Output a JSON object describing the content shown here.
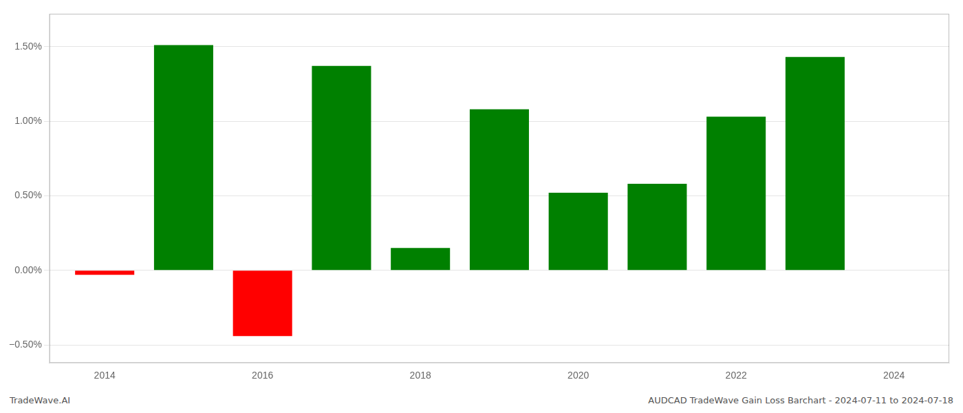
{
  "chart_data": {
    "type": "bar",
    "x": [
      2014,
      2015,
      2016,
      2017,
      2018,
      2019,
      2020,
      2021,
      2022,
      2023
    ],
    "values": [
      -0.03,
      1.51,
      -0.44,
      1.37,
      0.15,
      1.08,
      0.52,
      0.58,
      1.03,
      1.43
    ],
    "colors": [
      "#ff0000",
      "#008000",
      "#ff0000",
      "#008000",
      "#008000",
      "#008000",
      "#008000",
      "#008000",
      "#008000",
      "#008000"
    ],
    "xlim": [
      2013.3,
      2024.7
    ],
    "xticks": [
      2014,
      2016,
      2018,
      2020,
      2022,
      2024
    ],
    "ylim": [
      -0.62,
      1.72
    ],
    "yticks": [
      {
        "value": -0.5,
        "label": "−0.50%"
      },
      {
        "value": 0.0,
        "label": "0.00%"
      },
      {
        "value": 0.5,
        "label": "0.50%"
      },
      {
        "value": 1.0,
        "label": "1.00%"
      },
      {
        "value": 1.5,
        "label": "1.50%"
      }
    ],
    "grid": true,
    "annotations": [
      "TradeWave.AI",
      "AUDCAD TradeWave Gain Loss Barchart - 2024-07-11 to 2024-07-18"
    ]
  }
}
